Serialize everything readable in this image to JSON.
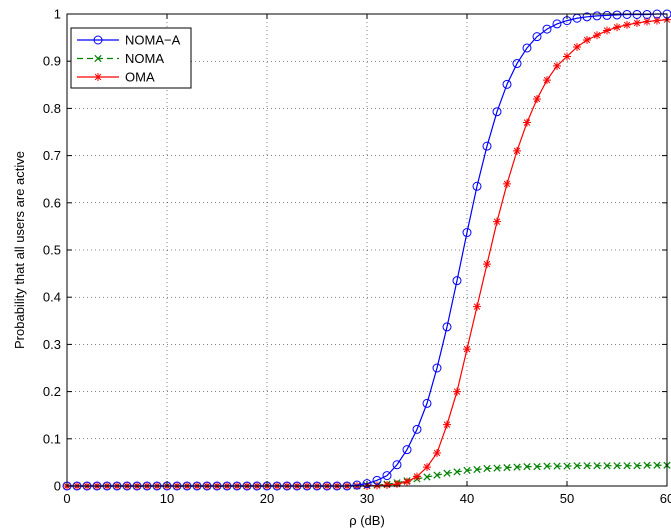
{
  "chart_data": {
    "type": "line",
    "title": "",
    "xlabel": "ρ (dB)",
    "ylabel": "Probability that all users are active",
    "xlim": [
      0,
      60
    ],
    "ylim": [
      0,
      1
    ],
    "xticks": [
      0,
      10,
      20,
      30,
      40,
      50,
      60
    ],
    "yticks": [
      0,
      0.1,
      0.2,
      0.3,
      0.4,
      0.5,
      0.6,
      0.7,
      0.8,
      0.9,
      1
    ],
    "xtick_labels": [
      "0",
      "10",
      "20",
      "30",
      "40",
      "50",
      "60"
    ],
    "ytick_labels": [
      "0",
      "0.1",
      "0.2",
      "0.3",
      "0.4",
      "0.5",
      "0.6",
      "0.7",
      "0.8",
      "0.9",
      "1"
    ],
    "grid": true,
    "legend_position": "top-left",
    "x": [
      0,
      1,
      2,
      3,
      4,
      5,
      6,
      7,
      8,
      9,
      10,
      11,
      12,
      13,
      14,
      15,
      16,
      17,
      18,
      19,
      20,
      21,
      22,
      23,
      24,
      25,
      26,
      27,
      28,
      29,
      30,
      31,
      32,
      33,
      34,
      35,
      36,
      37,
      38,
      39,
      40,
      41,
      42,
      43,
      44,
      45,
      46,
      47,
      48,
      49,
      50,
      51,
      52,
      53,
      54,
      55,
      56,
      57,
      58,
      59,
      60
    ],
    "series": [
      {
        "name": "NOMA−A",
        "color": "#0000ff",
        "line_style": "solid",
        "marker": "circle",
        "values": [
          0,
          0,
          0,
          0,
          0,
          0,
          0,
          0,
          0,
          0,
          0,
          0,
          0,
          0,
          0,
          0,
          0,
          0,
          0,
          0,
          0,
          0,
          0,
          0,
          0,
          0,
          0,
          0,
          0,
          0.002,
          0.005,
          0.012,
          0.022,
          0.045,
          0.077,
          0.12,
          0.175,
          0.25,
          0.337,
          0.435,
          0.537,
          0.635,
          0.72,
          0.793,
          0.851,
          0.895,
          0.928,
          0.952,
          0.968,
          0.979,
          0.986,
          0.991,
          0.994,
          0.996,
          0.997,
          0.998,
          0.999,
          0.999,
          0.999,
          1.0,
          1.0
        ]
      },
      {
        "name": "NOMA",
        "color": "#008000",
        "line_style": "dashed",
        "marker": "x",
        "values": [
          0,
          0,
          0,
          0,
          0,
          0,
          0,
          0,
          0,
          0,
          0,
          0,
          0,
          0,
          0,
          0,
          0,
          0,
          0,
          0,
          0,
          0,
          0,
          0,
          0,
          0,
          0,
          0,
          0,
          0,
          0.001,
          0.002,
          0.004,
          0.007,
          0.011,
          0.015,
          0.019,
          0.023,
          0.027,
          0.03,
          0.033,
          0.035,
          0.037,
          0.038,
          0.039,
          0.04,
          0.041,
          0.041,
          0.042,
          0.042,
          0.042,
          0.043,
          0.043,
          0.043,
          0.043,
          0.043,
          0.043,
          0.043,
          0.044,
          0.044,
          0.044
        ]
      },
      {
        "name": "OMA",
        "color": "#ff0000",
        "line_style": "solid",
        "marker": "asterisk",
        "values": [
          0,
          0,
          0,
          0,
          0,
          0,
          0,
          0,
          0,
          0,
          0,
          0,
          0,
          0,
          0,
          0,
          0,
          0,
          0,
          0,
          0,
          0,
          0,
          0,
          0,
          0,
          0,
          0,
          0,
          0,
          0,
          0.001,
          0.002,
          0.004,
          0.009,
          0.02,
          0.04,
          0.07,
          0.13,
          0.2,
          0.29,
          0.38,
          0.47,
          0.56,
          0.64,
          0.71,
          0.77,
          0.82,
          0.86,
          0.89,
          0.91,
          0.93,
          0.945,
          0.955,
          0.965,
          0.972,
          0.977,
          0.981,
          0.984,
          0.986,
          0.988
        ]
      }
    ]
  }
}
